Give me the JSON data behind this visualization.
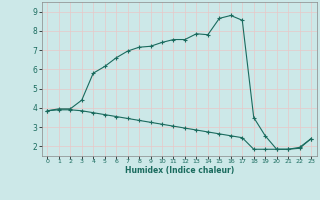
{
  "xlabel": "Humidex (Indice chaleur)",
  "bg_color": "#cce8e8",
  "grid_color": "#e8c8c8",
  "line_color": "#1a6b5e",
  "xlim": [
    -0.5,
    23.5
  ],
  "ylim": [
    1.5,
    9.5
  ],
  "xticks": [
    0,
    1,
    2,
    3,
    4,
    5,
    6,
    7,
    8,
    9,
    10,
    11,
    12,
    13,
    14,
    15,
    16,
    17,
    18,
    19,
    20,
    21,
    22,
    23
  ],
  "yticks": [
    2,
    3,
    4,
    5,
    6,
    7,
    8,
    9
  ],
  "upper_line_x": [
    0,
    1,
    2,
    3,
    4,
    5,
    6,
    7,
    8,
    9,
    10,
    11,
    12,
    13,
    14,
    15,
    16,
    17,
    18,
    19,
    20,
    21,
    22,
    23
  ],
  "upper_line_y": [
    3.85,
    3.95,
    3.95,
    4.4,
    5.8,
    6.15,
    6.6,
    6.95,
    7.15,
    7.2,
    7.4,
    7.55,
    7.55,
    7.85,
    7.8,
    8.65,
    8.8,
    8.55,
    3.5,
    2.55,
    1.85,
    1.85,
    1.9,
    2.4
  ],
  "lower_line_x": [
    0,
    1,
    2,
    3,
    4,
    5,
    6,
    7,
    8,
    9,
    10,
    11,
    12,
    13,
    14,
    15,
    16,
    17,
    18,
    19,
    20,
    21,
    22,
    23
  ],
  "lower_line_y": [
    3.85,
    3.9,
    3.9,
    3.85,
    3.75,
    3.65,
    3.55,
    3.45,
    3.35,
    3.25,
    3.15,
    3.05,
    2.95,
    2.85,
    2.75,
    2.65,
    2.55,
    2.45,
    1.85,
    1.85,
    1.85,
    1.85,
    1.95,
    2.4
  ]
}
